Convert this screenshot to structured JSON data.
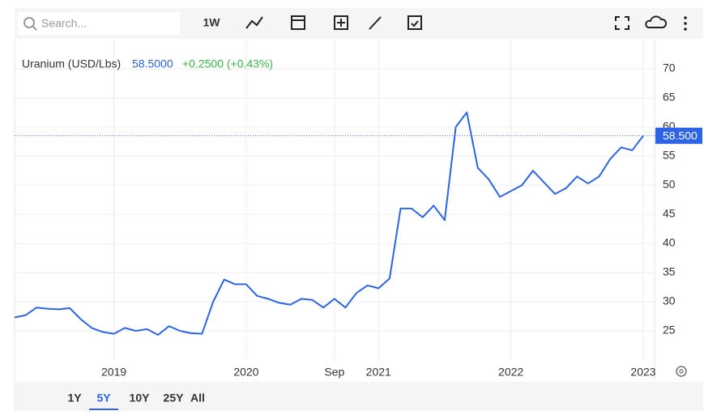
{
  "toolbar": {
    "search_placeholder": "Search...",
    "interval": "1W"
  },
  "ranges": [
    "1Y",
    "5Y",
    "10Y",
    "25Y",
    "All"
  ],
  "chart_data": {
    "type": "line",
    "series_title": "Uranium (USD/Lbs)",
    "current_value_label": "58.5000",
    "change_label": "+0.2500 (+0.43%)",
    "price_tag": "58.500",
    "x": [
      "2018-04",
      "2018-05",
      "2018-06",
      "2018-07",
      "2018-08",
      "2018-09",
      "2018-10",
      "2018-11",
      "2018-12",
      "2019-01",
      "2019-02",
      "2019-03",
      "2019-04",
      "2019-05",
      "2019-06",
      "2019-07",
      "2019-08",
      "2019-09",
      "2019-10",
      "2019-11",
      "2019-12",
      "2020-01",
      "2020-02",
      "2020-03",
      "2020-04",
      "2020-05",
      "2020-06",
      "2020-07",
      "2020-08",
      "2020-09",
      "2020-10",
      "2020-11",
      "2020-12",
      "2021-01",
      "2021-02",
      "2021-03",
      "2021-04",
      "2021-05",
      "2021-06",
      "2021-07",
      "2021-08",
      "2021-09",
      "2021-10",
      "2021-11",
      "2021-12",
      "2022-01",
      "2022-02",
      "2022-03",
      "2022-04",
      "2022-05",
      "2022-06",
      "2022-07",
      "2022-08",
      "2022-09",
      "2022-10",
      "2022-11",
      "2022-12",
      "2023-01"
    ],
    "series": [
      {
        "name": "Uranium (USD/Lbs)",
        "color": "#2d63e6",
        "values": [
          27.3,
          27.7,
          29.0,
          28.8,
          28.7,
          28.9,
          27.0,
          25.5,
          24.8,
          24.5,
          25.5,
          25.0,
          25.3,
          24.3,
          25.8,
          25.0,
          24.6,
          24.5,
          30.0,
          33.8,
          33.0,
          33.0,
          31.0,
          30.5,
          29.8,
          29.5,
          30.5,
          30.3,
          29.0,
          30.5,
          29.0,
          31.5,
          32.8,
          32.3,
          34.0,
          46.0,
          46.0,
          44.5,
          46.5,
          44.0,
          60.0,
          62.5,
          53.0,
          51.0,
          48.0,
          49.0,
          50.0,
          52.5,
          50.5,
          48.5,
          49.5,
          51.5,
          50.3,
          51.5,
          54.5,
          56.5,
          56.0,
          58.5
        ]
      }
    ],
    "xlim": [
      "2018-04",
      "2023-01"
    ],
    "xticks": [
      {
        "value": "2019-01",
        "label": "2019"
      },
      {
        "value": "2020-01",
        "label": "2020"
      },
      {
        "value": "2020-09",
        "label": "Sep"
      },
      {
        "value": "2021-01",
        "label": "2021"
      },
      {
        "value": "2022-01",
        "label": "2022"
      },
      {
        "value": "2023-01",
        "label": "2023"
      }
    ],
    "ylim": [
      20,
      75
    ],
    "yticks": [
      25,
      30,
      35,
      40,
      45,
      50,
      55,
      60,
      65,
      70
    ],
    "grid": true
  }
}
